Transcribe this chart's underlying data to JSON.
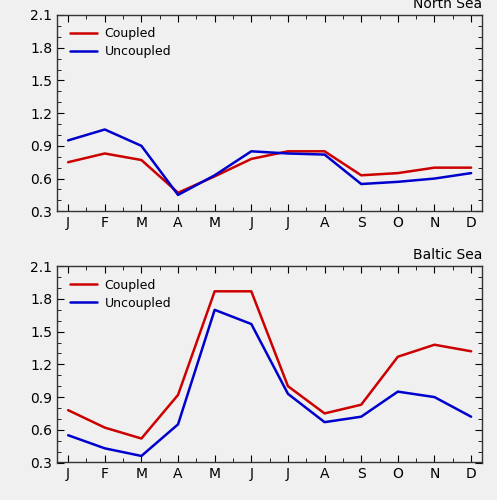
{
  "months": [
    "J",
    "F",
    "M",
    "A",
    "M",
    "J",
    "J",
    "A",
    "S",
    "O",
    "N",
    "D"
  ],
  "north_sea": {
    "coupled": [
      0.75,
      0.83,
      0.77,
      0.47,
      0.62,
      0.78,
      0.85,
      0.85,
      0.63,
      0.65,
      0.7,
      0.7
    ],
    "uncoupled": [
      0.95,
      1.05,
      0.9,
      0.45,
      0.63,
      0.85,
      0.83,
      0.82,
      0.55,
      0.57,
      0.6,
      0.65
    ]
  },
  "baltic_sea": {
    "coupled": [
      0.78,
      0.62,
      0.52,
      0.92,
      1.87,
      1.87,
      1.0,
      0.75,
      0.83,
      1.27,
      1.38,
      1.32
    ],
    "uncoupled": [
      0.55,
      0.43,
      0.36,
      0.65,
      1.7,
      1.57,
      0.93,
      0.67,
      0.72,
      0.95,
      0.9,
      0.72
    ]
  },
  "coupled_color": "#cc0000",
  "uncoupled_color": "#0000cc",
  "ylim": [
    0.3,
    2.1
  ],
  "yticks": [
    0.3,
    0.6,
    0.9,
    1.2,
    1.5,
    1.8,
    2.1
  ],
  "north_label": "North Sea",
  "baltic_label": "Baltic Sea",
  "legend_coupled": "Coupled",
  "legend_uncoupled": "Uncoupled",
  "linewidth": 1.8,
  "bg_color": "#f0f0f0",
  "fig_bg": "#f0f0f0"
}
